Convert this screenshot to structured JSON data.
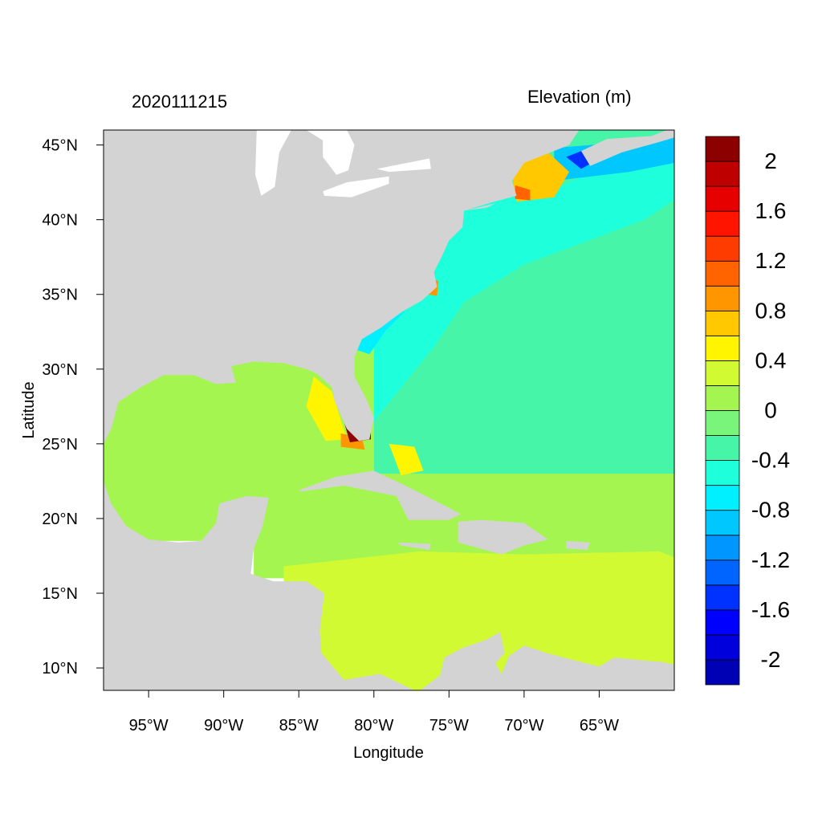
{
  "figure": {
    "timestamp": "2020111215",
    "variable_title": "Elevation (m)"
  },
  "chart_data": {
    "type": "heatmap",
    "xlabel": "Longitude",
    "ylabel": "Latitude",
    "xlim": [
      -98,
      -60
    ],
    "ylim": [
      8.5,
      46
    ],
    "x_ticks": [
      {
        "value": -95,
        "label": "95°W"
      },
      {
        "value": -90,
        "label": "90°W"
      },
      {
        "value": -85,
        "label": "85°W"
      },
      {
        "value": -80,
        "label": "80°W"
      },
      {
        "value": -75,
        "label": "75°W"
      },
      {
        "value": -70,
        "label": "70°W"
      },
      {
        "value": -65,
        "label": "65°W"
      }
    ],
    "y_ticks": [
      {
        "value": 45,
        "label": "45°N"
      },
      {
        "value": 40,
        "label": "40°N"
      },
      {
        "value": 35,
        "label": "35°N"
      },
      {
        "value": 30,
        "label": "30°N"
      },
      {
        "value": 25,
        "label": "25°N"
      },
      {
        "value": 20,
        "label": "20°N"
      },
      {
        "value": 15,
        "label": "15°N"
      },
      {
        "value": 10,
        "label": "10°N"
      }
    ],
    "land_color": "#d3d3d3",
    "colorbar": {
      "bins": [
        {
          "from": -2.2,
          "to": -2.0,
          "color": "#0000b4"
        },
        {
          "from": -2.0,
          "to": -1.8,
          "color": "#0000dc"
        },
        {
          "from": -1.8,
          "to": -1.6,
          "color": "#0000ff"
        },
        {
          "from": -1.6,
          "to": -1.4,
          "color": "#0032ff"
        },
        {
          "from": -1.4,
          "to": -1.2,
          "color": "#0064ff"
        },
        {
          "from": -1.2,
          "to": -1.0,
          "color": "#0096ff"
        },
        {
          "from": -1.0,
          "to": -0.8,
          "color": "#00c8ff"
        },
        {
          "from": -0.8,
          "to": -0.6,
          "color": "#00f0ff"
        },
        {
          "from": -0.6,
          "to": -0.4,
          "color": "#1effdc"
        },
        {
          "from": -0.4,
          "to": -0.2,
          "color": "#46f5a8"
        },
        {
          "from": -0.2,
          "to": 0.0,
          "color": "#78f57a"
        },
        {
          "from": 0.0,
          "to": 0.2,
          "color": "#a5f550"
        },
        {
          "from": 0.2,
          "to": 0.4,
          "color": "#d2fa32"
        },
        {
          "from": 0.4,
          "to": 0.6,
          "color": "#fff500"
        },
        {
          "from": 0.6,
          "to": 0.8,
          "color": "#ffc800"
        },
        {
          "from": 0.8,
          "to": 1.0,
          "color": "#ff9600"
        },
        {
          "from": 1.0,
          "to": 1.2,
          "color": "#ff6400"
        },
        {
          "from": 1.2,
          "to": 1.4,
          "color": "#ff3c00"
        },
        {
          "from": 1.4,
          "to": 1.6,
          "color": "#ff1400"
        },
        {
          "from": 1.6,
          "to": 1.8,
          "color": "#e60000"
        },
        {
          "from": 1.8,
          "to": 2.0,
          "color": "#be0000"
        },
        {
          "from": 2.0,
          "to": 2.2,
          "color": "#8c0000"
        }
      ],
      "labels": [
        {
          "value": 2.0,
          "label": "2"
        },
        {
          "value": 1.6,
          "label": "1.6"
        },
        {
          "value": 1.2,
          "label": "1.2"
        },
        {
          "value": 0.8,
          "label": "0.8"
        },
        {
          "value": 0.4,
          "label": "0.4"
        },
        {
          "value": 0.0,
          "label": "0"
        },
        {
          "value": -0.4,
          "label": "-0.4"
        },
        {
          "value": -0.8,
          "label": "-0.8"
        },
        {
          "value": -1.2,
          "label": "-1.2"
        },
        {
          "value": -1.6,
          "label": "-1.6"
        },
        {
          "value": -2.0,
          "label": "-2"
        }
      ]
    },
    "regions": [
      {
        "name": "atlantic-open",
        "value": -0.3
      },
      {
        "name": "northeast-shelf",
        "value": -0.5
      },
      {
        "name": "gulf-of-mexico",
        "value": 0.1
      },
      {
        "name": "caribbean-north",
        "value": 0.1
      },
      {
        "name": "caribbean-south",
        "value": 0.3
      },
      {
        "name": "southeast-coastal-band",
        "value": -0.7
      },
      {
        "name": "florida-southwest-surge",
        "value": 2.1
      },
      {
        "name": "florida-keys-surge",
        "value": 0.9
      },
      {
        "name": "gulf-of-maine-surge",
        "value": 0.6
      },
      {
        "name": "cape-cod-surge",
        "value": 1.1
      },
      {
        "name": "bay-of-fundy-drawdown",
        "value": -1.6
      },
      {
        "name": "scotian-shelf",
        "value": -0.9
      },
      {
        "name": "great-bahama-bank",
        "value": 0.5
      },
      {
        "name": "pamlico-sound",
        "value": 0.9
      },
      {
        "name": "west-florida-shelf",
        "value": 0.4
      }
    ]
  }
}
